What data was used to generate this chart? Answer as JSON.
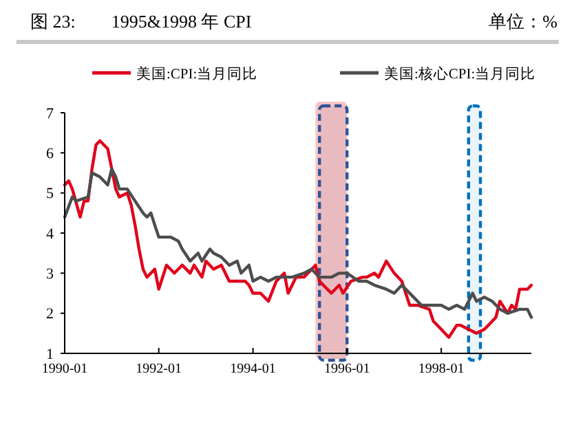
{
  "chart_data": {
    "type": "line",
    "title": "图 23:　　1995&1998 年 CPI",
    "subtitle": "单位：%",
    "xlim": [
      "1990-01",
      "1999-12"
    ],
    "xticks": [
      "1990-01",
      "1992-01",
      "1994-01",
      "1996-01",
      "1998-01"
    ],
    "ylim": [
      1,
      7
    ],
    "yticks": [
      1,
      2,
      3,
      4,
      5,
      6,
      7
    ],
    "grid": false,
    "legend": "top",
    "marker": "none",
    "line_style": "solid",
    "bands": [
      {
        "axis": "x",
        "from": "1995-05",
        "to": "1996-01",
        "color": "#f9c4c4"
      },
      {
        "axis": "x",
        "from": "1995-06",
        "to": "1996-01",
        "color": "#2f5597"
      },
      {
        "axis": "x",
        "from": "1998-08",
        "to": "1998-11",
        "color": "#0070c0"
      }
    ],
    "series": [
      {
        "name": "美国:CPI:当月同比",
        "color": "#e0001b",
        "x": [
          "1990-01",
          "1990-02",
          "1990-03",
          "1990-05",
          "1990-06",
          "1990-07",
          "1990-08",
          "1990-09",
          "1990-10",
          "1990-12",
          "1991-01",
          "1991-02",
          "1991-03",
          "1991-05",
          "1991-06",
          "1991-07",
          "1991-08",
          "1991-09",
          "1991-10",
          "1991-12",
          "1992-01",
          "1992-03",
          "1992-05",
          "1992-07",
          "1992-09",
          "1992-10",
          "1992-12",
          "1993-01",
          "1993-03",
          "1993-05",
          "1993-07",
          "1993-09",
          "1993-11",
          "1993-12",
          "1994-01",
          "1994-03",
          "1994-05",
          "1994-07",
          "1994-09",
          "1994-10",
          "1994-12",
          "1995-02",
          "1995-05",
          "1995-06",
          "1995-09",
          "1995-11",
          "1995-12",
          "1996-02",
          "1996-05",
          "1996-06",
          "1996-08",
          "1996-09",
          "1996-11",
          "1997-01",
          "1997-03",
          "1997-05",
          "1997-07",
          "1997-10",
          "1997-11",
          "1998-01",
          "1998-03",
          "1998-05",
          "1998-06",
          "1998-08",
          "1998-10",
          "1998-12",
          "1999-01",
          "1999-03",
          "1999-04",
          "1999-06",
          "1999-07",
          "1999-08",
          "1999-09",
          "1999-11",
          "1999-12"
        ],
        "values": [
          5.2,
          5.3,
          5.1,
          4.4,
          4.8,
          4.8,
          5.6,
          6.2,
          6.3,
          6.1,
          5.6,
          5.1,
          4.9,
          5.0,
          4.7,
          4.2,
          3.6,
          3.1,
          2.9,
          3.1,
          2.6,
          3.2,
          3.0,
          3.2,
          3.0,
          3.2,
          2.9,
          3.3,
          3.1,
          3.2,
          2.8,
          2.8,
          2.8,
          2.7,
          2.5,
          2.5,
          2.3,
          2.8,
          3.0,
          2.5,
          2.9,
          2.9,
          3.2,
          2.8,
          2.5,
          2.7,
          2.5,
          2.8,
          2.9,
          2.9,
          3.0,
          2.9,
          3.3,
          3.0,
          2.8,
          2.2,
          2.2,
          2.1,
          1.8,
          1.6,
          1.4,
          1.7,
          1.7,
          1.6,
          1.5,
          1.6,
          1.7,
          1.9,
          2.3,
          2.0,
          2.2,
          2.1,
          2.6,
          2.6,
          2.7
        ]
      },
      {
        "name": "美国:核心CPI:当月同比",
        "color": "#4d4d4d",
        "x": [
          "1990-01",
          "1990-03",
          "1990-04",
          "1990-07",
          "1990-08",
          "1990-10",
          "1990-12",
          "1991-01",
          "1991-02",
          "1991-03",
          "1991-05",
          "1991-07",
          "1991-09",
          "1991-10",
          "1991-11",
          "1991-12",
          "1992-01",
          "1992-04",
          "1992-06",
          "1992-07",
          "1992-09",
          "1992-11",
          "1992-12",
          "1993-02",
          "1993-03",
          "1993-05",
          "1993-07",
          "1993-09",
          "1993-10",
          "1993-12",
          "1994-01",
          "1994-03",
          "1994-05",
          "1994-07",
          "1994-09",
          "1994-11",
          "1995-02",
          "1995-04",
          "1995-06",
          "1995-09",
          "1995-11",
          "1996-01",
          "1996-04",
          "1996-06",
          "1996-08",
          "1996-11",
          "1997-01",
          "1997-03",
          "1997-06",
          "1997-08",
          "1997-10",
          "1998-01",
          "1998-03",
          "1998-05",
          "1998-07",
          "1998-09",
          "1998-10",
          "1998-12",
          "1999-02",
          "1999-04",
          "1999-06",
          "1999-09",
          "1999-11",
          "1999-12"
        ],
        "values": [
          4.4,
          4.9,
          4.8,
          4.9,
          5.5,
          5.4,
          5.2,
          5.6,
          5.4,
          5.1,
          5.1,
          4.8,
          4.5,
          4.4,
          4.5,
          4.2,
          3.9,
          3.9,
          3.8,
          3.6,
          3.3,
          3.5,
          3.3,
          3.6,
          3.5,
          3.4,
          3.2,
          3.3,
          3.0,
          3.2,
          2.8,
          2.9,
          2.8,
          2.9,
          2.9,
          2.9,
          3.0,
          3.1,
          2.9,
          2.9,
          3.0,
          3.0,
          2.8,
          2.8,
          2.7,
          2.6,
          2.5,
          2.7,
          2.4,
          2.2,
          2.2,
          2.2,
          2.1,
          2.2,
          2.1,
          2.5,
          2.3,
          2.4,
          2.3,
          2.1,
          2.0,
          2.1,
          2.1,
          1.9
        ]
      }
    ]
  }
}
